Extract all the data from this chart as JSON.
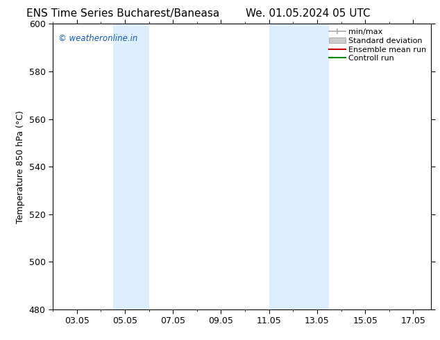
{
  "title_left": "ENS Time Series Bucharest/Baneasa",
  "title_right": "We. 01.05.2024 05 UTC",
  "ylabel": "Temperature 850 hPa (°C)",
  "ylim": [
    480,
    600
  ],
  "yticks": [
    480,
    500,
    520,
    540,
    560,
    580,
    600
  ],
  "xtick_labels": [
    "03.05",
    "05.05",
    "07.05",
    "09.05",
    "11.05",
    "13.05",
    "15.05",
    "17.05"
  ],
  "xtick_positions_days": [
    3,
    5,
    7,
    9,
    11,
    13,
    15,
    17
  ],
  "xlim": [
    2.0,
    17.75
  ],
  "shaded_bands": [
    {
      "x_start_day": 4.5,
      "x_end_day": 6.0
    },
    {
      "x_start_day": 11.0,
      "x_end_day": 13.5
    }
  ],
  "shade_color": "#ddeeff",
  "watermark_text": "© weatheronline.in",
  "watermark_color": "#1155bb",
  "bg_color": "#ffffff",
  "spine_color": "#000000",
  "title_fontsize": 11,
  "legend_fontsize": 8,
  "ylabel_fontsize": 9,
  "tick_labelsize": 9,
  "minmax_color": "#aaaaaa",
  "stddev_color": "#cccccc",
  "ensemble_color": "#cc0000",
  "control_color": "#008800"
}
